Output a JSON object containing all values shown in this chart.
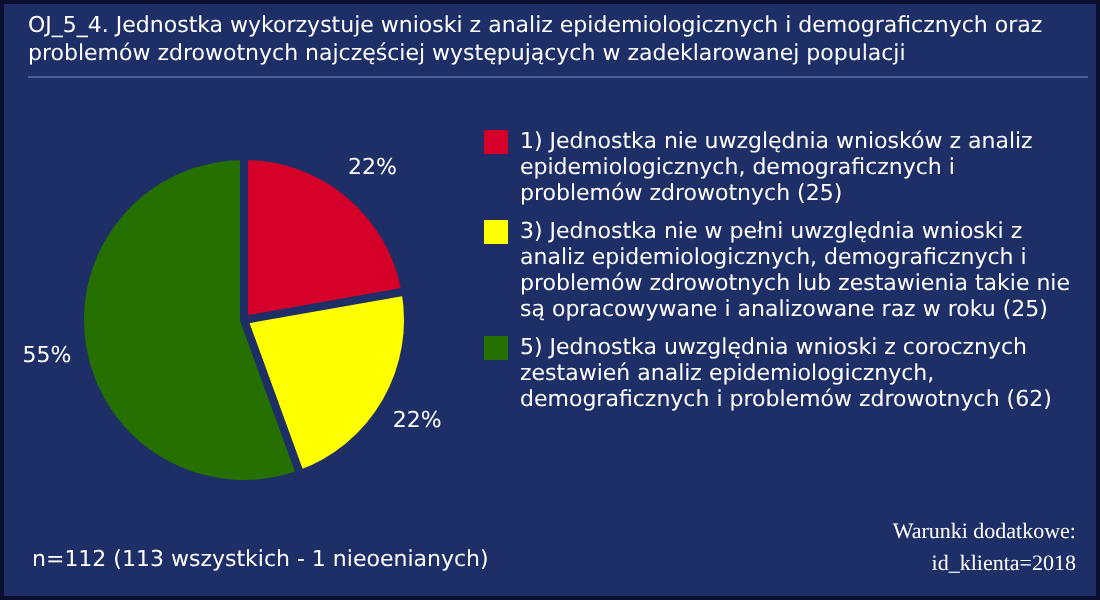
{
  "chart_data": {
    "type": "pie",
    "title": "OJ_5_4. Jednostka wykorzystuje wnioski z analiz epidemiologicznych i demograficznych oraz problemów zdrowotnych najczęściej występujących w zadeklarowanej populacji",
    "categories": [
      "1) Jednostka nie uwzględnia wniosków z analiz epidemiologicznych, demograficznych i problemów zdrowotnych (25)",
      "3) Jednostka nie w pełni uwzględnia wnioski z analiz epidemiologicznych, demograficznych i problemów zdrowotnych lub zestawienia takie nie są opracowywane i analizowane raz w roku (25)",
      "5) Jednostka uwzględnia wnioski z corocznych zestawień analiz epidemiologicznych, demograficznych i problemów zdrowotnych (62)"
    ],
    "values": [
      22,
      22,
      55
    ],
    "value_labels": [
      "22%",
      "22%",
      "55%"
    ],
    "colors": [
      "#d4002a",
      "#ffff00",
      "#257000"
    ],
    "legend": "right",
    "annotations": [
      "n=112 (113 wszystkich - 1 nieoenianych)",
      "Warunki dodatkowe:",
      "id_klienta=2018"
    ]
  }
}
